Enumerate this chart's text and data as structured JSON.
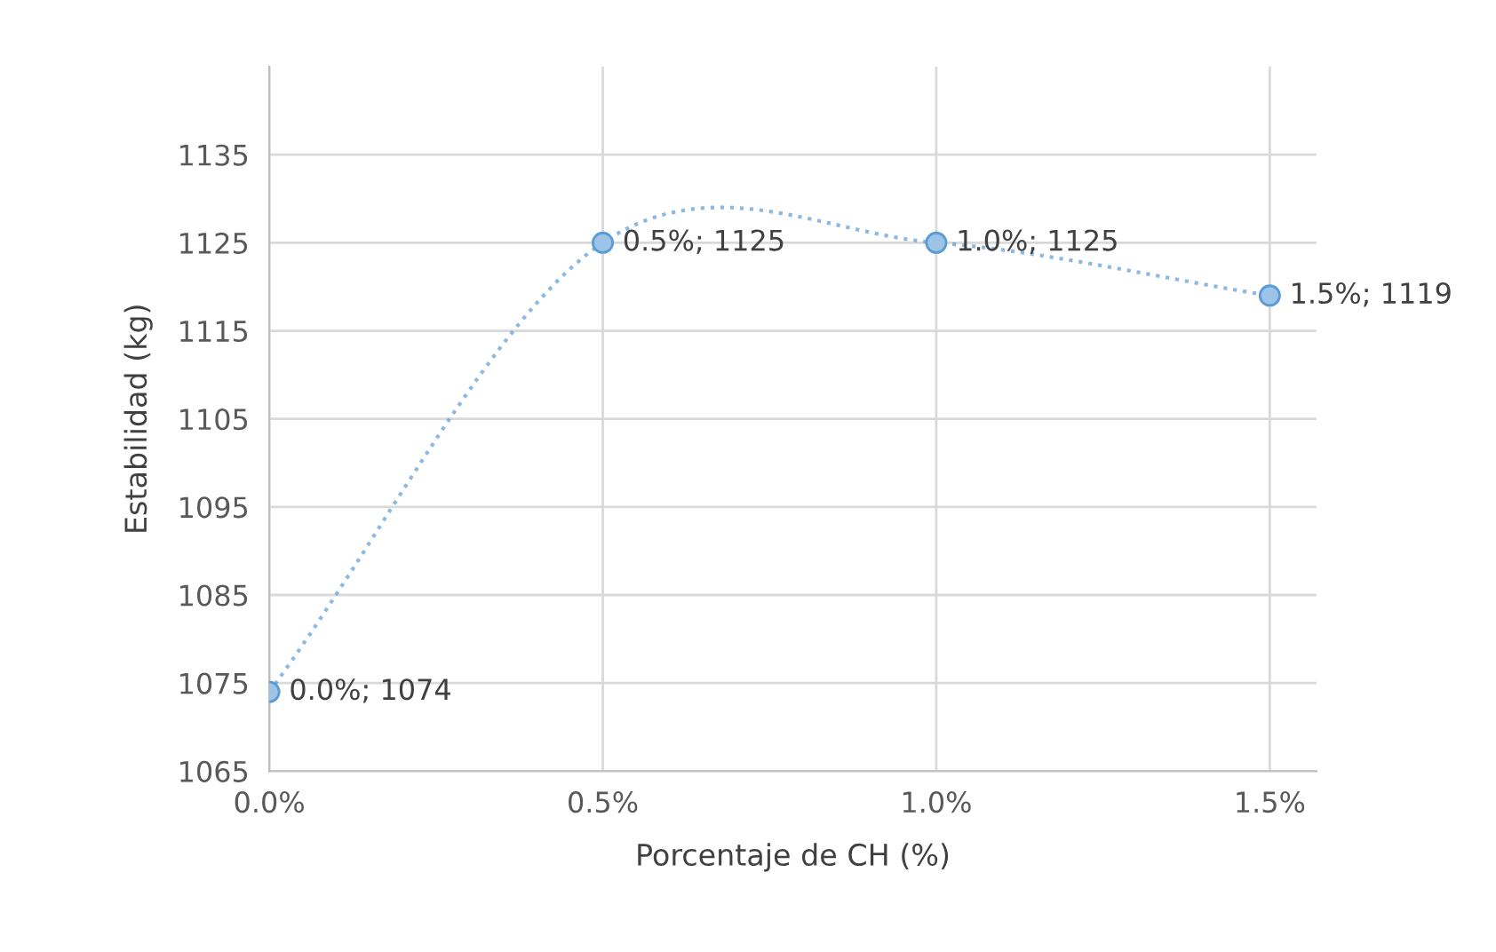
{
  "chart_data": {
    "type": "line",
    "xlabel": "Porcentaje de CH (%)",
    "ylabel": "Estabilidad (kg)",
    "x": [
      0,
      0.5,
      1.0,
      1.5
    ],
    "series": [
      {
        "color": "#5b9bd5",
        "values": [
          1074,
          1125,
          1125,
          1119
        ],
        "value_labels": [
          "0.0%; 1074",
          "0.5%; 1125",
          "1.0%; 1125",
          "1.5%; 1119"
        ]
      }
    ],
    "xlim": [
      0,
      1.57
    ],
    "xticks": [
      {
        "value": 0,
        "label": "0.0%"
      },
      {
        "value": 0.5,
        "label": "0.5%"
      },
      {
        "value": 1.0,
        "label": "1.0%"
      },
      {
        "value": 1.5,
        "label": "1.5%"
      }
    ],
    "ylim": [
      1065,
      1145
    ],
    "yticks": [
      1065,
      1075,
      1085,
      1095,
      1105,
      1115,
      1125,
      1135
    ],
    "grid": true,
    "marker": "circle",
    "line_style": "dotted"
  }
}
